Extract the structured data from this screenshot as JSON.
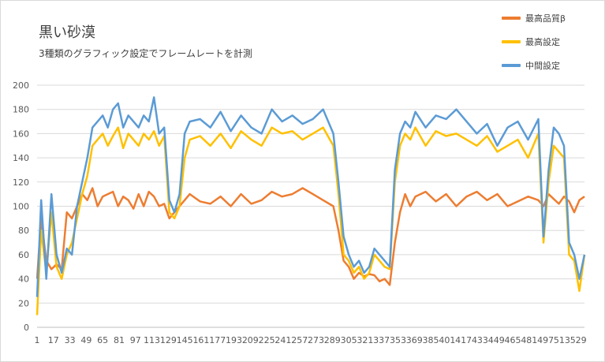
{
  "chart_data": {
    "type": "line",
    "title": "黒い砂漠",
    "subtitle": "3種類のグラフィック設定でフレームレートを計測",
    "xlabel": "",
    "ylabel": "",
    "ylim": [
      0,
      200
    ],
    "y_ticks": [
      0,
      20,
      40,
      60,
      80,
      100,
      120,
      140,
      160,
      180,
      200
    ],
    "x_tick_labels": [
      "1",
      "17",
      "33",
      "49",
      "65",
      "81",
      "97",
      "113",
      "129",
      "145",
      "161",
      "177",
      "193",
      "209",
      "225",
      "241",
      "257",
      "273",
      "289",
      "305",
      "321",
      "337",
      "353",
      "369",
      "385",
      "401",
      "417",
      "433",
      "449",
      "465",
      "481",
      "497",
      "513",
      "529"
    ],
    "x_range": [
      1,
      535
    ],
    "grid": "horizontal",
    "legend_position": "top-right",
    "series": [
      {
        "name": "最高品質β",
        "color": "#ED7D31",
        "x": [
          1,
          5,
          10,
          15,
          20,
          25,
          30,
          35,
          40,
          45,
          50,
          55,
          60,
          65,
          70,
          75,
          80,
          85,
          90,
          95,
          100,
          105,
          110,
          115,
          120,
          125,
          130,
          135,
          140,
          145,
          150,
          160,
          170,
          180,
          190,
          200,
          210,
          220,
          230,
          240,
          250,
          260,
          270,
          280,
          290,
          295,
          300,
          305,
          310,
          315,
          320,
          325,
          330,
          335,
          340,
          345,
          350,
          355,
          360,
          365,
          370,
          380,
          390,
          400,
          410,
          420,
          430,
          440,
          450,
          460,
          470,
          480,
          490,
          495,
          500,
          505,
          510,
          515,
          520,
          525,
          530,
          535
        ],
        "values": [
          40,
          90,
          55,
          48,
          52,
          48,
          95,
          90,
          100,
          110,
          105,
          115,
          100,
          108,
          110,
          112,
          100,
          108,
          105,
          98,
          110,
          100,
          112,
          108,
          100,
          102,
          90,
          95,
          100,
          105,
          110,
          104,
          102,
          108,
          100,
          110,
          102,
          105,
          112,
          108,
          110,
          115,
          110,
          105,
          100,
          80,
          55,
          50,
          40,
          45,
          42,
          44,
          43,
          38,
          40,
          35,
          70,
          95,
          110,
          100,
          108,
          112,
          104,
          110,
          100,
          108,
          112,
          105,
          110,
          100,
          104,
          108,
          105,
          100,
          110,
          106,
          102,
          108,
          104,
          95,
          105,
          108
        ]
      },
      {
        "name": "最高設定",
        "color": "#FFC000",
        "x": [
          1,
          5,
          10,
          15,
          20,
          25,
          30,
          35,
          40,
          45,
          50,
          55,
          60,
          65,
          70,
          75,
          80,
          85,
          90,
          95,
          100,
          105,
          110,
          115,
          120,
          125,
          130,
          135,
          140,
          145,
          150,
          160,
          170,
          180,
          190,
          200,
          210,
          220,
          230,
          240,
          250,
          260,
          270,
          280,
          290,
          295,
          300,
          305,
          310,
          315,
          320,
          325,
          330,
          335,
          340,
          345,
          350,
          355,
          360,
          365,
          370,
          380,
          390,
          400,
          410,
          420,
          430,
          440,
          450,
          460,
          470,
          480,
          490,
          495,
          500,
          505,
          510,
          515,
          520,
          525,
          530,
          535
        ],
        "values": [
          10,
          80,
          45,
          95,
          50,
          40,
          60,
          70,
          90,
          110,
          125,
          150,
          155,
          160,
          150,
          158,
          165,
          148,
          160,
          155,
          150,
          160,
          155,
          162,
          150,
          158,
          95,
          90,
          100,
          140,
          155,
          158,
          150,
          160,
          148,
          162,
          155,
          150,
          165,
          160,
          162,
          155,
          160,
          165,
          150,
          110,
          60,
          55,
          45,
          50,
          40,
          45,
          60,
          55,
          50,
          48,
          120,
          150,
          160,
          155,
          165,
          150,
          162,
          158,
          160,
          155,
          150,
          158,
          145,
          150,
          155,
          140,
          160,
          70,
          120,
          150,
          145,
          140,
          60,
          55,
          30,
          60
        ]
      },
      {
        "name": "中間設定",
        "color": "#5B9BD5",
        "x": [
          1,
          5,
          10,
          15,
          20,
          25,
          30,
          35,
          40,
          45,
          50,
          55,
          60,
          65,
          70,
          75,
          80,
          85,
          90,
          95,
          100,
          105,
          110,
          115,
          120,
          125,
          130,
          135,
          140,
          145,
          150,
          160,
          170,
          180,
          190,
          200,
          210,
          220,
          230,
          240,
          250,
          260,
          270,
          280,
          290,
          295,
          300,
          305,
          310,
          315,
          320,
          325,
          330,
          335,
          340,
          345,
          350,
          355,
          360,
          365,
          370,
          380,
          390,
          400,
          410,
          420,
          430,
          440,
          450,
          460,
          470,
          480,
          490,
          495,
          500,
          505,
          510,
          515,
          520,
          525,
          530,
          535
        ],
        "values": [
          25,
          105,
          40,
          110,
          60,
          45,
          65,
          60,
          100,
          120,
          140,
          165,
          170,
          175,
          165,
          180,
          185,
          165,
          175,
          170,
          165,
          175,
          170,
          190,
          160,
          165,
          105,
          95,
          110,
          160,
          170,
          172,
          165,
          178,
          162,
          175,
          165,
          160,
          180,
          170,
          175,
          168,
          172,
          180,
          160,
          120,
          75,
          60,
          50,
          55,
          45,
          50,
          65,
          60,
          55,
          50,
          130,
          160,
          170,
          165,
          178,
          165,
          175,
          172,
          180,
          170,
          160,
          168,
          150,
          165,
          170,
          155,
          172,
          75,
          130,
          165,
          160,
          150,
          70,
          60,
          40,
          60
        ]
      }
    ]
  }
}
